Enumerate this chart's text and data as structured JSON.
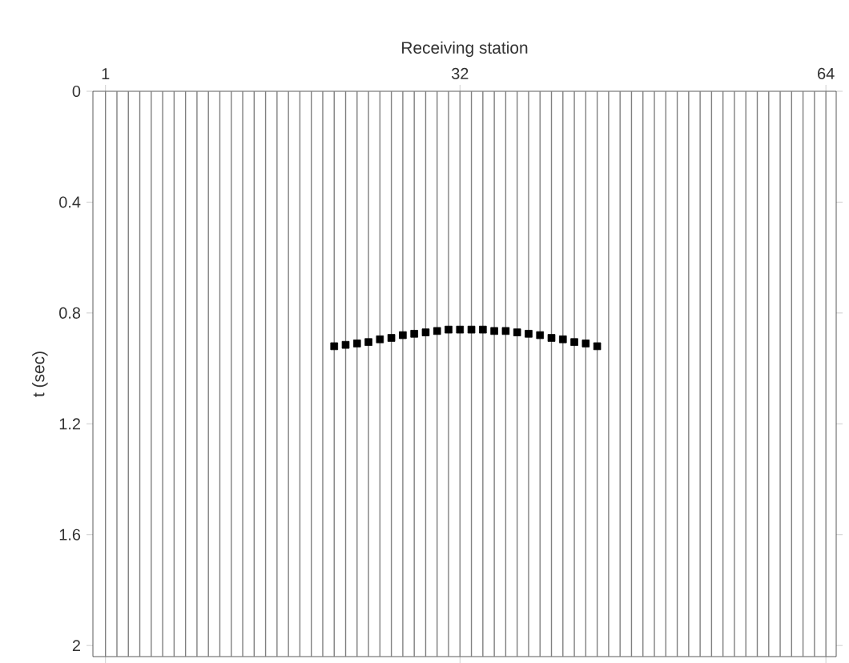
{
  "chart_data": {
    "type": "scatter",
    "xlabel": "Receiving station",
    "ylabel": "t (sec)",
    "xlim": [
      -0.1,
      64.9
    ],
    "ylim": [
      2.04,
      0
    ],
    "xticks": [
      1,
      32,
      64
    ],
    "yticks": [
      0,
      0.4,
      0.8,
      1.2,
      1.6,
      2
    ],
    "marker": "square",
    "series": [
      {
        "color": "#000000",
        "x": [
          21,
          22,
          23,
          24,
          25,
          26,
          27,
          28,
          29,
          30,
          31,
          32,
          33,
          34,
          35,
          36,
          37,
          38,
          39,
          40,
          41,
          42,
          43,
          44
        ],
        "values": [
          0.92,
          0.915,
          0.91,
          0.905,
          0.895,
          0.89,
          0.88,
          0.875,
          0.87,
          0.865,
          0.86,
          0.86,
          0.86,
          0.86,
          0.865,
          0.865,
          0.87,
          0.875,
          0.88,
          0.89,
          0.895,
          0.905,
          0.91,
          0.92
        ]
      }
    ],
    "ref_lines": [
      {
        "axis": "x",
        "value": 1,
        "color": "#808080"
      },
      {
        "axis": "x",
        "value": 2,
        "color": "#808080"
      },
      {
        "axis": "x",
        "value": 3,
        "color": "#808080"
      },
      {
        "axis": "x",
        "value": 4,
        "color": "#808080"
      },
      {
        "axis": "x",
        "value": 5,
        "color": "#808080"
      },
      {
        "axis": "x",
        "value": 6,
        "color": "#808080"
      },
      {
        "axis": "x",
        "value": 7,
        "color": "#808080"
      },
      {
        "axis": "x",
        "value": 8,
        "color": "#808080"
      },
      {
        "axis": "x",
        "value": 9,
        "color": "#808080"
      },
      {
        "axis": "x",
        "value": 10,
        "color": "#808080"
      },
      {
        "axis": "x",
        "value": 11,
        "color": "#808080"
      },
      {
        "axis": "x",
        "value": 12,
        "color": "#808080"
      },
      {
        "axis": "x",
        "value": 13,
        "color": "#808080"
      },
      {
        "axis": "x",
        "value": 14,
        "color": "#808080"
      },
      {
        "axis": "x",
        "value": 15,
        "color": "#808080"
      },
      {
        "axis": "x",
        "value": 16,
        "color": "#808080"
      },
      {
        "axis": "x",
        "value": 17,
        "color": "#808080"
      },
      {
        "axis": "x",
        "value": 18,
        "color": "#808080"
      },
      {
        "axis": "x",
        "value": 19,
        "color": "#808080"
      },
      {
        "axis": "x",
        "value": 20,
        "color": "#808080"
      },
      {
        "axis": "x",
        "value": 21,
        "color": "#808080"
      },
      {
        "axis": "x",
        "value": 22,
        "color": "#808080"
      },
      {
        "axis": "x",
        "value": 23,
        "color": "#808080"
      },
      {
        "axis": "x",
        "value": 24,
        "color": "#808080"
      },
      {
        "axis": "x",
        "value": 25,
        "color": "#808080"
      },
      {
        "axis": "x",
        "value": 26,
        "color": "#808080"
      },
      {
        "axis": "x",
        "value": 27,
        "color": "#808080"
      },
      {
        "axis": "x",
        "value": 28,
        "color": "#808080"
      },
      {
        "axis": "x",
        "value": 29,
        "color": "#808080"
      },
      {
        "axis": "x",
        "value": 30,
        "color": "#808080"
      },
      {
        "axis": "x",
        "value": 31,
        "color": "#808080"
      },
      {
        "axis": "x",
        "value": 32,
        "color": "#808080"
      },
      {
        "axis": "x",
        "value": 33,
        "color": "#808080"
      },
      {
        "axis": "x",
        "value": 34,
        "color": "#808080"
      },
      {
        "axis": "x",
        "value": 35,
        "color": "#808080"
      },
      {
        "axis": "x",
        "value": 36,
        "color": "#808080"
      },
      {
        "axis": "x",
        "value": 37,
        "color": "#808080"
      },
      {
        "axis": "x",
        "value": 38,
        "color": "#808080"
      },
      {
        "axis": "x",
        "value": 39,
        "color": "#808080"
      },
      {
        "axis": "x",
        "value": 40,
        "color": "#808080"
      },
      {
        "axis": "x",
        "value": 41,
        "color": "#808080"
      },
      {
        "axis": "x",
        "value": 42,
        "color": "#808080"
      },
      {
        "axis": "x",
        "value": 43,
        "color": "#808080"
      },
      {
        "axis": "x",
        "value": 44,
        "color": "#808080"
      },
      {
        "axis": "x",
        "value": 45,
        "color": "#808080"
      },
      {
        "axis": "x",
        "value": 46,
        "color": "#808080"
      },
      {
        "axis": "x",
        "value": 47,
        "color": "#808080"
      },
      {
        "axis": "x",
        "value": 48,
        "color": "#808080"
      },
      {
        "axis": "x",
        "value": 49,
        "color": "#808080"
      },
      {
        "axis": "x",
        "value": 50,
        "color": "#808080"
      },
      {
        "axis": "x",
        "value": 51,
        "color": "#808080"
      },
      {
        "axis": "x",
        "value": 52,
        "color": "#808080"
      },
      {
        "axis": "x",
        "value": 53,
        "color": "#808080"
      },
      {
        "axis": "x",
        "value": 54,
        "color": "#808080"
      },
      {
        "axis": "x",
        "value": 55,
        "color": "#808080"
      },
      {
        "axis": "x",
        "value": 56,
        "color": "#808080"
      },
      {
        "axis": "x",
        "value": 57,
        "color": "#808080"
      },
      {
        "axis": "x",
        "value": 58,
        "color": "#808080"
      },
      {
        "axis": "x",
        "value": 59,
        "color": "#808080"
      },
      {
        "axis": "x",
        "value": 60,
        "color": "#808080"
      },
      {
        "axis": "x",
        "value": 61,
        "color": "#808080"
      },
      {
        "axis": "x",
        "value": 62,
        "color": "#808080"
      },
      {
        "axis": "x",
        "value": 63,
        "color": "#808080"
      },
      {
        "axis": "x",
        "value": 64,
        "color": "#808080"
      }
    ]
  }
}
